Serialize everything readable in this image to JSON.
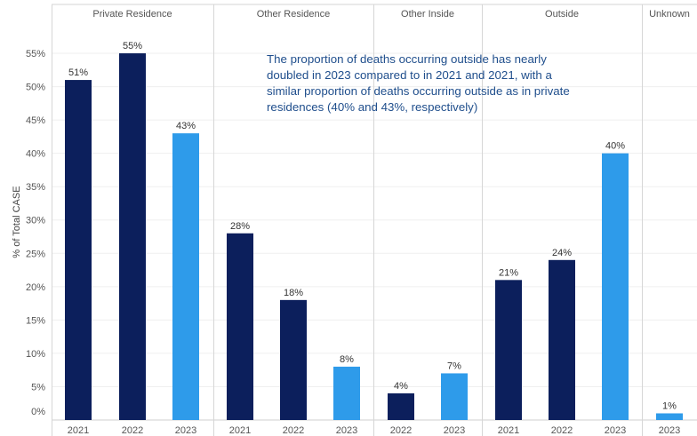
{
  "chart_data": {
    "type": "bar",
    "ylabel": "% of Total CASE",
    "ylim": [
      0,
      59
    ],
    "yticks": [
      0,
      5,
      10,
      15,
      20,
      25,
      30,
      35,
      40,
      45,
      50,
      55
    ],
    "ytick_labels": [
      "0%",
      "5%",
      "10%",
      "15%",
      "20%",
      "25%",
      "30%",
      "35%",
      "40%",
      "45%",
      "50%",
      "55%"
    ],
    "colors": {
      "2021": "#0c1f5c",
      "2022": "#0c1f5c",
      "2023": "#2e9bea"
    },
    "gridlines": "horizontal",
    "panels": [
      {
        "name": "Private Residence",
        "bars": [
          {
            "year": "2021",
            "value": 51,
            "label": "51%"
          },
          {
            "year": "2022",
            "value": 55,
            "label": "55%"
          },
          {
            "year": "2023",
            "value": 43,
            "label": "43%"
          }
        ]
      },
      {
        "name": "Other Residence",
        "bars": [
          {
            "year": "2021",
            "value": 28,
            "label": "28%"
          },
          {
            "year": "2022",
            "value": 18,
            "label": "18%"
          },
          {
            "year": "2023",
            "value": 8,
            "label": "8%"
          }
        ]
      },
      {
        "name": "Other Inside",
        "bars": [
          {
            "year": "2022",
            "value": 4,
            "label": "4%"
          },
          {
            "year": "2023",
            "value": 7,
            "label": "7%"
          }
        ]
      },
      {
        "name": "Outside",
        "bars": [
          {
            "year": "2021",
            "value": 21,
            "label": "21%"
          },
          {
            "year": "2022",
            "value": 24,
            "label": "24%"
          },
          {
            "year": "2023",
            "value": 40,
            "label": "40%"
          }
        ]
      },
      {
        "name": "Unknown",
        "bars": [
          {
            "year": "2023",
            "value": 1,
            "label": "1%"
          }
        ]
      }
    ],
    "annotation": [
      "The proportion of deaths occurring outside has nearly",
      "doubled in 2023 compared to in 2021 and 2021, with a",
      "similar proportion of deaths occurring outside as in private",
      "residences (40% and 43%, respectively)"
    ]
  }
}
